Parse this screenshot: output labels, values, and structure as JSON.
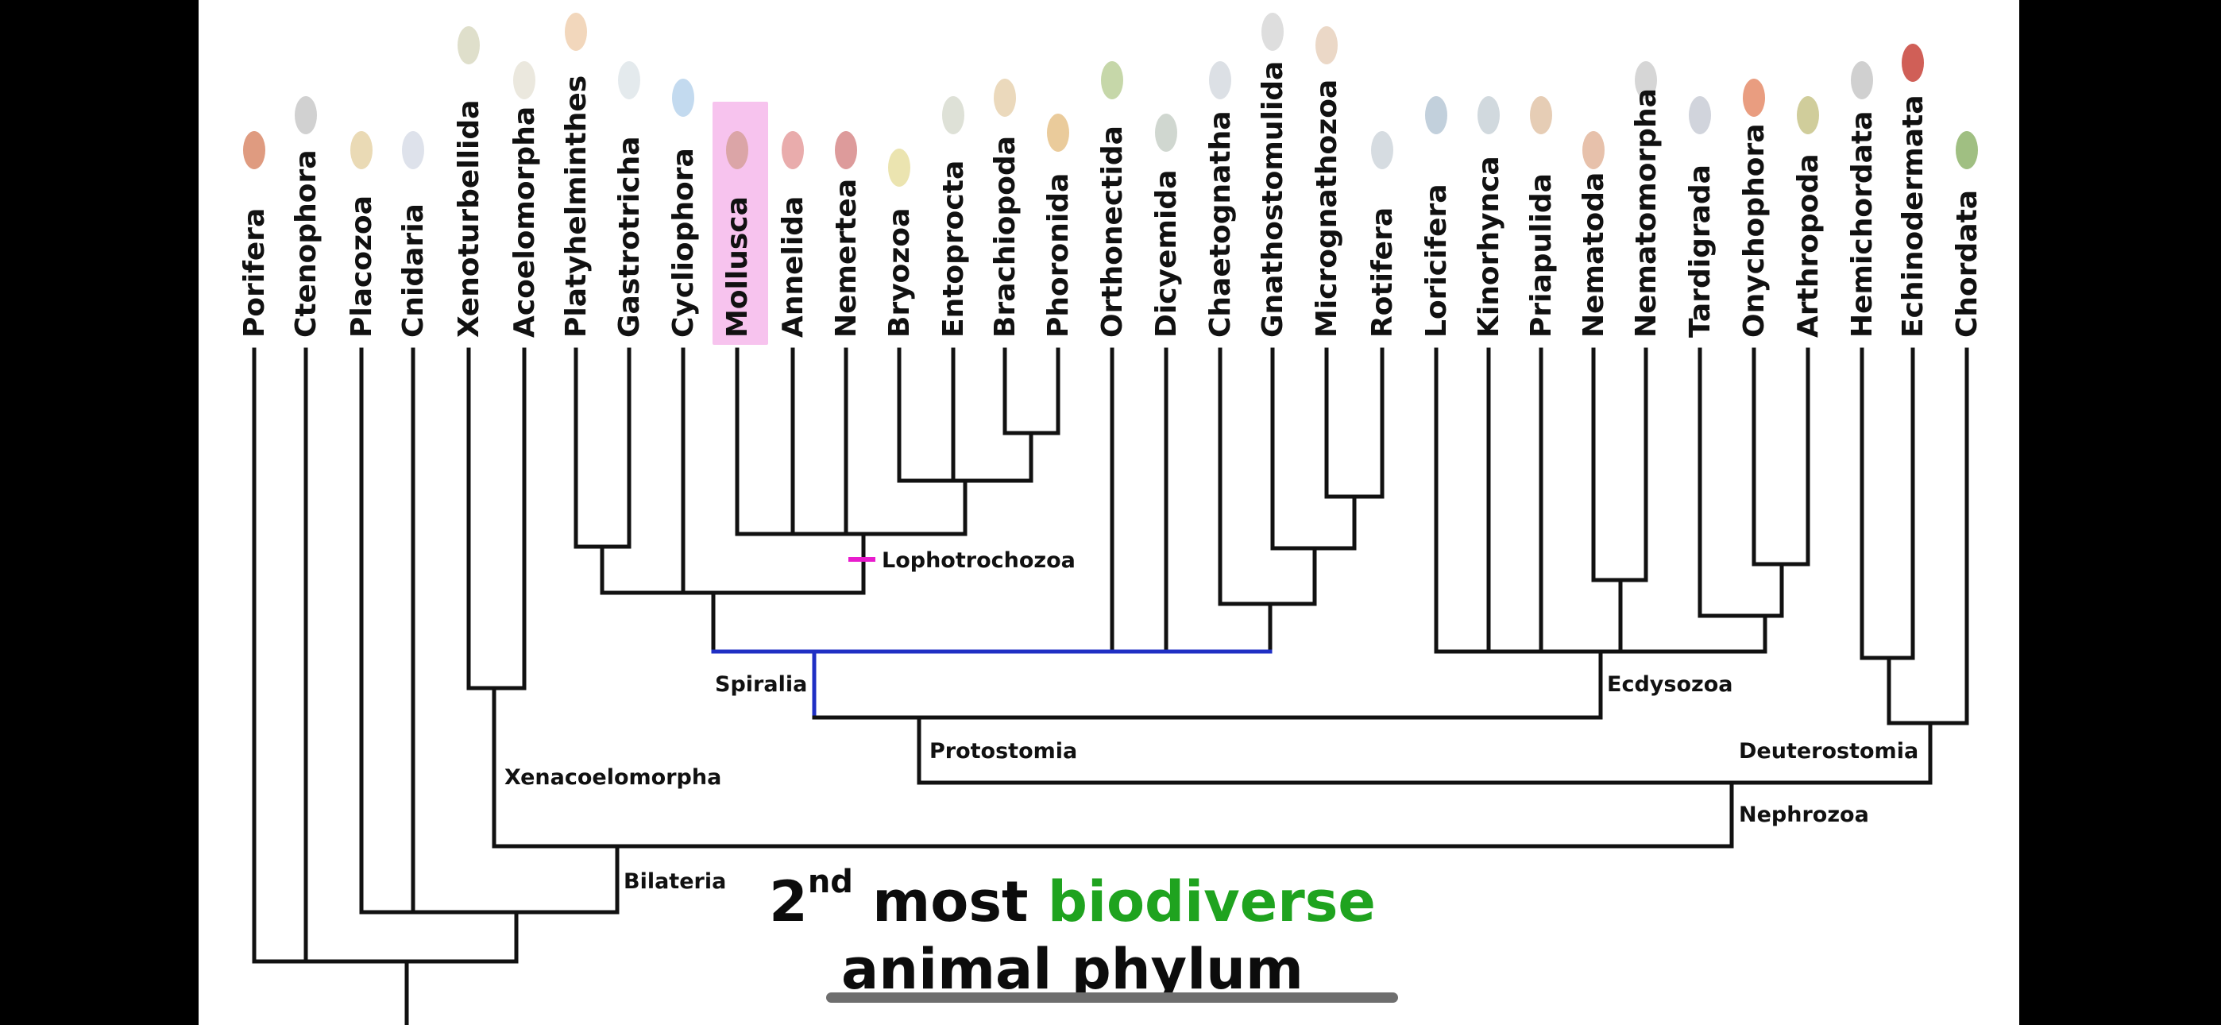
{
  "phyla": [
    {
      "name": "Porifera",
      "icon": "sponge-icon"
    },
    {
      "name": "Ctenophora",
      "icon": "comb-jelly-icon"
    },
    {
      "name": "Placozoa",
      "icon": "placozoan-icon"
    },
    {
      "name": "Cnidaria",
      "icon": "jellyfish-icon"
    },
    {
      "name": "Xenoturbellida",
      "icon": "xenoturbella-icon"
    },
    {
      "name": "Acoelomorpha",
      "icon": "acoel-worm-icon"
    },
    {
      "name": "Platyhelminthes",
      "icon": "flatworm-icon"
    },
    {
      "name": "Gastrotricha",
      "icon": "gastrotrich-icon"
    },
    {
      "name": "Cycliophora",
      "icon": "cycliophoran-icon"
    },
    {
      "name": "Mollusca",
      "icon": "mollusc-icon",
      "highlighted": true
    },
    {
      "name": "Annelida",
      "icon": "annelid-worm-icon"
    },
    {
      "name": "Nemertea",
      "icon": "ribbon-worm-icon"
    },
    {
      "name": "Bryozoa",
      "icon": "bryozoan-icon"
    },
    {
      "name": "Entoprocta",
      "icon": "entoproct-icon"
    },
    {
      "name": "Brachiopoda",
      "icon": "brachiopod-icon"
    },
    {
      "name": "Phoronida",
      "icon": "phoronid-icon"
    },
    {
      "name": "Orthonectida",
      "icon": "orthonectid-icon"
    },
    {
      "name": "Dicyemida",
      "icon": "dicyemid-icon"
    },
    {
      "name": "Chaetognatha",
      "icon": "arrow-worm-icon"
    },
    {
      "name": "Gnathostomulida",
      "icon": "jaw-worm-icon"
    },
    {
      "name": "Micrognathozoa",
      "icon": "micrognathozoan-icon"
    },
    {
      "name": "Rotifera",
      "icon": "rotifer-icon"
    },
    {
      "name": "Loricifera",
      "icon": "loriciferan-icon"
    },
    {
      "name": "Kinorhynca",
      "icon": "mud-dragon-icon"
    },
    {
      "name": "Priapulida",
      "icon": "priapulid-icon"
    },
    {
      "name": "Nematoda",
      "icon": "roundworm-icon"
    },
    {
      "name": "Nematomorpha",
      "icon": "horsehair-worm-icon"
    },
    {
      "name": "Tardigrada",
      "icon": "tardigrade-icon"
    },
    {
      "name": "Onychophora",
      "icon": "velvet-worm-icon"
    },
    {
      "name": "Arthropoda",
      "icon": "beetle-icon"
    },
    {
      "name": "Hemichordata",
      "icon": "acorn-worm-icon"
    },
    {
      "name": "Echinodermata",
      "icon": "starfish-icon"
    },
    {
      "name": "Chordata",
      "icon": "frog-icon"
    }
  ],
  "clades": {
    "lophotrochozoa": "Lophotrochozoa",
    "spiralia": "Spiralia",
    "ecdysozoa": "Ecdysozoa",
    "protostomia": "Protostomia",
    "deuterostomia": "Deuterostomia",
    "xenacoelomorpha": "Xenacoelomorpha",
    "nephrozoa": "Nephrozoa",
    "bilateria": "Bilateria"
  },
  "caption": {
    "ordinal_number": "2",
    "ordinal_suffix": "nd",
    "word_most": "most",
    "word_biodiverse": "biodiverse",
    "line2": "animal phylum"
  },
  "colors": {
    "tree_lines": "#111111",
    "spiralia": "#1f2fc4",
    "lophotrochozoa": "#e81ccd",
    "highlight": "#f7c3ee",
    "accent_green": "#1fa31f"
  }
}
